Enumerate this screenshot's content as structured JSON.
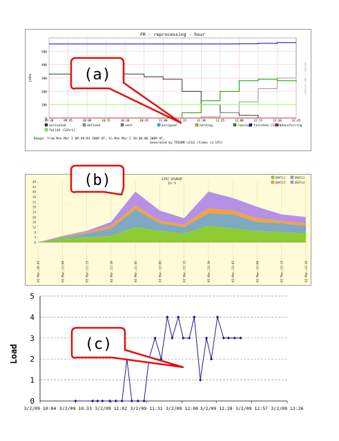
{
  "chart_data": [
    {
      "type": "line",
      "callout": "(a)",
      "title": "FR - reprocessing - hour",
      "ylabel": "jobs",
      "x": [
        "09:30",
        "09:45",
        "10:00",
        "10:15",
        "10:30",
        "10:45",
        "11:00",
        "11:15",
        "11:30",
        "11:45",
        "12:00",
        "12:15",
        "12:30",
        "12:45"
      ],
      "ylim": [
        0,
        600
      ],
      "yticks": [
        0,
        100,
        200,
        300,
        400,
        500
      ],
      "series": [
        {
          "name": "activated",
          "color": "#333333",
          "values": [
            330,
            330,
            330,
            330,
            330,
            310,
            290,
            200,
            100,
            40,
            20,
            0,
            0,
            0
          ]
        },
        {
          "name": "defined",
          "color": "#999999",
          "values": [
            0,
            0,
            0,
            0,
            0,
            0,
            0,
            0,
            10,
            40,
            120,
            220,
            300,
            600
          ]
        },
        {
          "name": "sent",
          "color": "#9966cc",
          "values": [
            0,
            0,
            0,
            0,
            0,
            0,
            0,
            0,
            0,
            0,
            0,
            0,
            0,
            0
          ]
        },
        {
          "name": "assigned",
          "color": "#33cccc",
          "values": [
            0,
            0,
            0,
            0,
            0,
            0,
            0,
            0,
            0,
            0,
            0,
            0,
            0,
            0
          ]
        },
        {
          "name": "holding",
          "color": "#ff9900",
          "values": [
            0,
            0,
            0,
            0,
            0,
            0,
            0,
            0,
            0,
            0,
            0,
            0,
            0,
            0
          ]
        },
        {
          "name": "running",
          "color": "#009900",
          "values": [
            0,
            0,
            0,
            0,
            0,
            0,
            0,
            40,
            130,
            200,
            280,
            290,
            280,
            270
          ]
        },
        {
          "name": "transferring",
          "color": "#cc3333",
          "values": [
            0,
            0,
            0,
            0,
            0,
            0,
            0,
            0,
            0,
            0,
            0,
            0,
            0,
            0
          ]
        },
        {
          "name": "finished (12hrs)",
          "color": "#0000cc",
          "values": [
            555,
            555,
            555,
            555,
            555,
            555,
            555,
            555,
            555,
            555,
            557,
            560,
            565,
            565
          ]
        },
        {
          "name": "failed (12hrs)",
          "color": "#99ff66",
          "values": [
            100,
            100,
            100,
            100,
            100,
            100,
            100,
            100,
            100,
            100,
            100,
            100,
            100,
            100
          ]
        }
      ],
      "footer_range": "Range: from Mon Mar  2 09:49:03 2009 UT,  to Mon Mar  2 10:40:00 2009 UT,",
      "footer_generated": "Generated by TRIUMF-LCG2 (times in UTC)",
      "side_credit": "RRDTOOL / TOBI OETIKER"
    },
    {
      "type": "area",
      "callout": "(b)",
      "title": "CPU_USAGE",
      "subtitle": "in %",
      "x": [
        "02 Mar,10:45",
        "02 Mar,11:00",
        "02 Mar,11:15",
        "02 Mar,11:30",
        "02 Mar,11:45",
        "02 Mar,12:00",
        "02 Mar,12:15",
        "02 Mar,12:30",
        "02 Mar,12:45",
        "02 Mar,13:00",
        "02 Mar,13:15",
        "02 Mar,13:30"
      ],
      "ylim": [
        0,
        48
      ],
      "yticks": [
        0,
        4,
        8,
        12,
        16,
        20,
        24,
        28,
        32,
        36,
        40,
        44,
        48
      ],
      "series": [
        {
          "name": "DBATL1",
          "color": "#8fcc33",
          "values": [
            0,
            3,
            4,
            5,
            12,
            9,
            7,
            13,
            11,
            9,
            8,
            7
          ]
        },
        {
          "name": "DBATL2",
          "color": "#7fa8c2",
          "values": [
            0,
            1,
            3,
            6,
            14,
            6,
            5,
            10,
            11,
            7,
            7,
            6
          ]
        },
        {
          "name": "DBATL3",
          "color": "#f2a43a",
          "values": [
            0,
            0.5,
            1,
            2,
            3,
            2,
            2,
            4,
            3,
            3,
            2,
            2
          ]
        },
        {
          "name": "DBATL4",
          "color": "#b690e6",
          "values": [
            0,
            0.5,
            1,
            3,
            11,
            8,
            5,
            13,
            10,
            9,
            5,
            5
          ]
        }
      ]
    },
    {
      "type": "line",
      "callout": "(c)",
      "ylabel": "Load",
      "ylim": [
        0,
        5
      ],
      "yticks": [
        0,
        1,
        2,
        3,
        4,
        5
      ],
      "xlim_minutes": [
        0,
        202
      ],
      "xticks": [
        {
          "m": 0,
          "label": "3/2/09 10:04"
        },
        {
          "m": 29,
          "label": "3/2/09 10:33"
        },
        {
          "m": 58,
          "label": "3/2/09 11:02"
        },
        {
          "m": 87,
          "label": "3/2/09 11:31"
        },
        {
          "m": 116,
          "label": "3/2/09 12:00"
        },
        {
          "m": 144,
          "label": "3/2/09 12:28"
        },
        {
          "m": 173,
          "label": "3/2/09 12:57"
        },
        {
          "m": 202,
          "label": "3/2/09 13:26"
        }
      ],
      "series": [
        {
          "name": "",
          "color": "#1a1a8c",
          "minutes": [
            29,
            43,
            47,
            51,
            57,
            62,
            67,
            71,
            75,
            80,
            85,
            89,
            94,
            99,
            104,
            108,
            113,
            117,
            122,
            126,
            131,
            136,
            140,
            145,
            150,
            154,
            159,
            164
          ],
          "values": [
            0,
            0,
            0,
            0,
            0,
            0,
            0,
            2,
            0,
            0,
            0,
            2,
            3,
            2,
            4,
            3,
            4,
            3,
            3,
            4,
            1,
            3,
            2,
            4,
            3,
            3,
            3,
            3
          ]
        }
      ]
    }
  ]
}
